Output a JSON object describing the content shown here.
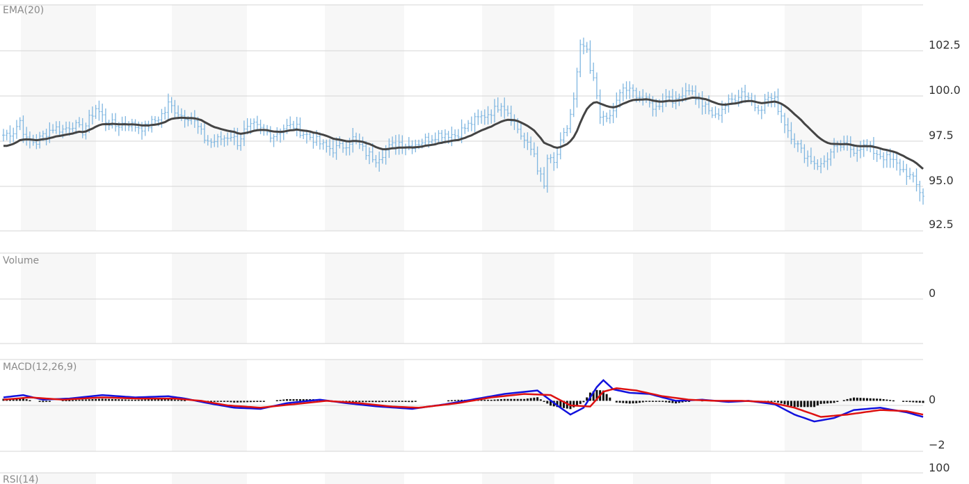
{
  "chart_data": [
    {
      "type": "ohlc",
      "title": "EMA(20)",
      "ylim": [
        92.5,
        105.0
      ],
      "yticks": [
        "92.5",
        "95.0",
        "97.5",
        "100.0",
        "102.5"
      ],
      "grid": true,
      "bar_color": "#7fb6e0",
      "line_color": "#444444",
      "anchors_close": [
        [
          0,
          97.8
        ],
        [
          3,
          98.0
        ],
        [
          5,
          98.6
        ],
        [
          7,
          97.5
        ],
        [
          10,
          97.4
        ],
        [
          12,
          97.8
        ],
        [
          15,
          98.2
        ],
        [
          18,
          98.1
        ],
        [
          21,
          98.4
        ],
        [
          24,
          98.0
        ],
        [
          27,
          99.0
        ],
        [
          28,
          99.3
        ],
        [
          31,
          98.6
        ],
        [
          34,
          98.3
        ],
        [
          37,
          98.5
        ],
        [
          40,
          98.3
        ],
        [
          43,
          98.2
        ],
        [
          46,
          98.6
        ],
        [
          49,
          99.1
        ],
        [
          50,
          99.5
        ],
        [
          54,
          98.9
        ],
        [
          57,
          98.8
        ],
        [
          59,
          98.2
        ],
        [
          61,
          97.6
        ],
        [
          63,
          97.4
        ],
        [
          66,
          97.6
        ],
        [
          69,
          97.8
        ],
        [
          71,
          97.4
        ],
        [
          73,
          98.0
        ],
        [
          76,
          98.3
        ],
        [
          79,
          98.0
        ],
        [
          82,
          97.8
        ],
        [
          85,
          98.2
        ],
        [
          88,
          98.3
        ],
        [
          91,
          97.9
        ],
        [
          94,
          97.6
        ],
        [
          97,
          97.2
        ],
        [
          100,
          97.0
        ],
        [
          103,
          97.2
        ],
        [
          106,
          97.6
        ],
        [
          108,
          97.2
        ],
        [
          110,
          96.8
        ],
        [
          113,
          96.5
        ],
        [
          115,
          96.8
        ],
        [
          117,
          97.1
        ],
        [
          120,
          97.4
        ],
        [
          123,
          97.2
        ],
        [
          126,
          97.4
        ],
        [
          129,
          97.6
        ],
        [
          131,
          97.8
        ],
        [
          134,
          97.9
        ],
        [
          137,
          97.8
        ],
        [
          140,
          98.2
        ],
        [
          143,
          98.6
        ],
        [
          146,
          98.9
        ],
        [
          149,
          99.2
        ],
        [
          151,
          99.6
        ],
        [
          153,
          99.1
        ],
        [
          155,
          98.5
        ],
        [
          157,
          97.8
        ],
        [
          159,
          97.2
        ],
        [
          161,
          96.8
        ],
        [
          162,
          96.0
        ],
        [
          164,
          94.9
        ],
        [
          165,
          96.5
        ],
        [
          167,
          96.2
        ],
        [
          169,
          97.3
        ],
        [
          171,
          98.2
        ],
        [
          173,
          99.7
        ],
        [
          175,
          102.6
        ],
        [
          176,
          102.7
        ],
        [
          177,
          102.3
        ],
        [
          178,
          101.3
        ],
        [
          179,
          100.8
        ],
        [
          180,
          100.0
        ],
        [
          181,
          99.0
        ],
        [
          182,
          98.6
        ],
        [
          184,
          98.8
        ],
        [
          186,
          99.6
        ],
        [
          188,
          100.4
        ],
        [
          190,
          100.2
        ],
        [
          192,
          100.1
        ],
        [
          194,
          99.8
        ],
        [
          196,
          99.5
        ],
        [
          198,
          99.3
        ],
        [
          200,
          99.8
        ],
        [
          202,
          100.0
        ],
        [
          204,
          99.6
        ],
        [
          206,
          100.2
        ],
        [
          208,
          100.4
        ],
        [
          210,
          99.9
        ],
        [
          212,
          99.5
        ],
        [
          214,
          99.1
        ],
        [
          216,
          98.8
        ],
        [
          218,
          99.3
        ],
        [
          220,
          99.6
        ],
        [
          222,
          99.9
        ],
        [
          224,
          100.2
        ],
        [
          226,
          99.9
        ],
        [
          228,
          99.4
        ],
        [
          230,
          99.4
        ],
        [
          232,
          99.9
        ],
        [
          234,
          99.7
        ],
        [
          236,
          98.9
        ],
        [
          238,
          98.1
        ],
        [
          240,
          97.5
        ],
        [
          242,
          96.9
        ],
        [
          244,
          96.6
        ],
        [
          246,
          96.3
        ],
        [
          248,
          96.1
        ],
        [
          250,
          96.6
        ],
        [
          252,
          97.0
        ],
        [
          254,
          97.2
        ],
        [
          256,
          97.1
        ],
        [
          258,
          97.0
        ],
        [
          260,
          97.2
        ],
        [
          262,
          97.1
        ],
        [
          264,
          96.9
        ],
        [
          266,
          96.7
        ],
        [
          268,
          96.5
        ],
        [
          270,
          96.3
        ],
        [
          272,
          96.0
        ],
        [
          274,
          95.7
        ],
        [
          276,
          95.3
        ],
        [
          278,
          94.7
        ],
        [
          279,
          94.5
        ]
      ]
    },
    {
      "type": "bar",
      "title": "Volume",
      "yticks": [
        "0"
      ],
      "values": []
    },
    {
      "type": "macd",
      "title": "MACD(12,26,9)",
      "ylim": [
        -2.2,
        1.8
      ],
      "yticks": [
        "0",
        "−2"
      ],
      "macd_color": "#1111dd",
      "signal_color": "#dd1111",
      "hist_color": "#111111",
      "macd_anchors": [
        [
          0,
          0.15
        ],
        [
          6,
          0.25
        ],
        [
          12,
          0.05
        ],
        [
          20,
          0.1
        ],
        [
          30,
          0.25
        ],
        [
          40,
          0.15
        ],
        [
          50,
          0.2
        ],
        [
          55,
          0.1
        ],
        [
          62,
          -0.1
        ],
        [
          70,
          -0.3
        ],
        [
          78,
          -0.35
        ],
        [
          86,
          -0.1
        ],
        [
          96,
          0.05
        ],
        [
          104,
          -0.1
        ],
        [
          114,
          -0.25
        ],
        [
          124,
          -0.35
        ],
        [
          134,
          -0.15
        ],
        [
          144,
          0.1
        ],
        [
          152,
          0.3
        ],
        [
          162,
          0.45
        ],
        [
          168,
          -0.2
        ],
        [
          172,
          -0.6
        ],
        [
          176,
          -0.3
        ],
        [
          180,
          0.6
        ],
        [
          182,
          0.9
        ],
        [
          185,
          0.5
        ],
        [
          190,
          0.35
        ],
        [
          196,
          0.3
        ],
        [
          204,
          0.0
        ],
        [
          212,
          0.05
        ],
        [
          220,
          -0.05
        ],
        [
          226,
          0.0
        ],
        [
          234,
          -0.15
        ],
        [
          240,
          -0.6
        ],
        [
          246,
          -0.9
        ],
        [
          252,
          -0.75
        ],
        [
          258,
          -0.4
        ],
        [
          266,
          -0.3
        ],
        [
          274,
          -0.5
        ],
        [
          279,
          -0.7
        ]
      ],
      "signal_anchors": [
        [
          0,
          0.05
        ],
        [
          8,
          0.15
        ],
        [
          18,
          0.05
        ],
        [
          30,
          0.15
        ],
        [
          40,
          0.1
        ],
        [
          52,
          0.1
        ],
        [
          60,
          0.0
        ],
        [
          68,
          -0.2
        ],
        [
          78,
          -0.3
        ],
        [
          88,
          -0.15
        ],
        [
          98,
          0.0
        ],
        [
          108,
          -0.1
        ],
        [
          118,
          -0.25
        ],
        [
          126,
          -0.3
        ],
        [
          138,
          -0.1
        ],
        [
          148,
          0.15
        ],
        [
          158,
          0.3
        ],
        [
          166,
          0.25
        ],
        [
          172,
          -0.2
        ],
        [
          178,
          -0.25
        ],
        [
          182,
          0.4
        ],
        [
          186,
          0.55
        ],
        [
          192,
          0.45
        ],
        [
          200,
          0.2
        ],
        [
          208,
          0.05
        ],
        [
          216,
          0.0
        ],
        [
          224,
          0.0
        ],
        [
          232,
          -0.05
        ],
        [
          240,
          -0.3
        ],
        [
          248,
          -0.7
        ],
        [
          256,
          -0.6
        ],
        [
          266,
          -0.4
        ],
        [
          274,
          -0.45
        ],
        [
          279,
          -0.6
        ]
      ]
    },
    {
      "type": "line",
      "title": "RSI(14)",
      "yticks": [
        "100"
      ]
    }
  ]
}
